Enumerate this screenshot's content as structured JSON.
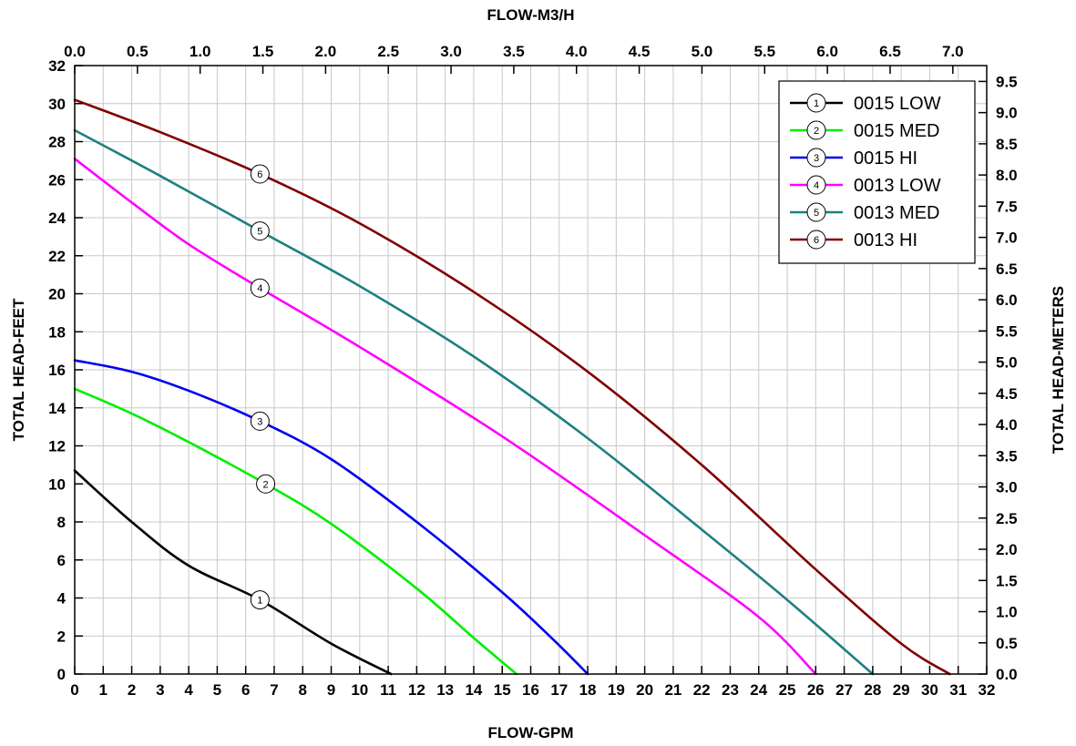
{
  "chart_data": {
    "type": "line",
    "x_bottom": {
      "label": "FLOW-GPM",
      "range": [
        0,
        32
      ],
      "ticks": [
        "0",
        "1",
        "2",
        "3",
        "4",
        "5",
        "6",
        "7",
        "8",
        "9",
        "10",
        "11",
        "12",
        "13",
        "14",
        "15",
        "16",
        "17",
        "18",
        "19",
        "20",
        "21",
        "22",
        "23",
        "24",
        "25",
        "26",
        "27",
        "28",
        "29",
        "30",
        "31",
        "32"
      ]
    },
    "x_top": {
      "label": "FLOW-M3/H",
      "range": [
        0,
        7.27
      ],
      "ticks": [
        "0.0",
        "0.5",
        "1.0",
        "1.5",
        "2.0",
        "2.5",
        "3.0",
        "3.5",
        "4.0",
        "4.5",
        "5.0",
        "5.5",
        "6.0",
        "6.5",
        "7.0"
      ]
    },
    "y_left": {
      "label": "TOTAL HEAD-FEET",
      "range": [
        0,
        32
      ],
      "ticks": [
        "0",
        "2",
        "4",
        "6",
        "8",
        "10",
        "12",
        "14",
        "16",
        "18",
        "20",
        "22",
        "24",
        "26",
        "28",
        "30",
        "32"
      ]
    },
    "y_right": {
      "label": "TOTAL HEAD-METERS",
      "range": [
        0,
        9.754
      ],
      "ticks": [
        "0.0",
        "0.5",
        "1.0",
        "1.5",
        "2.0",
        "2.5",
        "3.0",
        "3.5",
        "4.0",
        "4.5",
        "5.0",
        "5.5",
        "6.0",
        "6.5",
        "7.0",
        "7.5",
        "8.0",
        "8.5",
        "9.0",
        "9.5"
      ]
    },
    "grid": true,
    "legend_position": "top-right",
    "series": [
      {
        "name": "0015 LOW",
        "marker": "1",
        "color": "#000000",
        "marker_x": 6.5,
        "x": [
          0,
          2,
          4,
          6.5,
          9,
          11.1
        ],
        "y": [
          10.7,
          8.0,
          5.7,
          3.9,
          1.6,
          0
        ]
      },
      {
        "name": "0015 MED",
        "marker": "2",
        "color": "#00ee00",
        "marker_x": 6.7,
        "x": [
          0,
          2,
          4,
          6.7,
          9,
          12,
          14,
          15.5
        ],
        "y": [
          15.0,
          13.7,
          12.2,
          10.0,
          7.9,
          4.5,
          1.9,
          0
        ]
      },
      {
        "name": "0015 HI",
        "marker": "3",
        "color": "#0000ee",
        "marker_x": 6.5,
        "x": [
          0,
          2,
          4,
          6.5,
          9,
          12,
          15,
          16.8,
          18
        ],
        "y": [
          16.5,
          15.9,
          14.9,
          13.3,
          11.3,
          8.0,
          4.3,
          1.8,
          0
        ]
      },
      {
        "name": "0013 LOW",
        "marker": "4",
        "color": "#ff00ff",
        "marker_x": 6.5,
        "x": [
          0,
          2,
          4,
          6.5,
          10,
          15,
          20,
          24,
          26
        ],
        "y": [
          27.1,
          24.8,
          22.6,
          20.3,
          17.2,
          12.5,
          7.3,
          3.0,
          0
        ]
      },
      {
        "name": "0013 MED",
        "marker": "5",
        "color": "#1f8080",
        "marker_x": 6.5,
        "x": [
          0,
          3,
          6.5,
          10,
          14,
          18,
          22,
          25,
          28
        ],
        "y": [
          28.6,
          26.2,
          23.3,
          20.4,
          16.7,
          12.4,
          7.6,
          3.9,
          0
        ]
      },
      {
        "name": "0013 HI",
        "marker": "6",
        "color": "#800000",
        "marker_x": 6.5,
        "x": [
          0,
          3,
          6.5,
          10,
          14,
          18,
          22,
          26,
          29,
          30.7
        ],
        "y": [
          30.2,
          28.5,
          26.3,
          23.7,
          20.1,
          15.9,
          11.0,
          5.5,
          1.6,
          0
        ]
      }
    ]
  }
}
